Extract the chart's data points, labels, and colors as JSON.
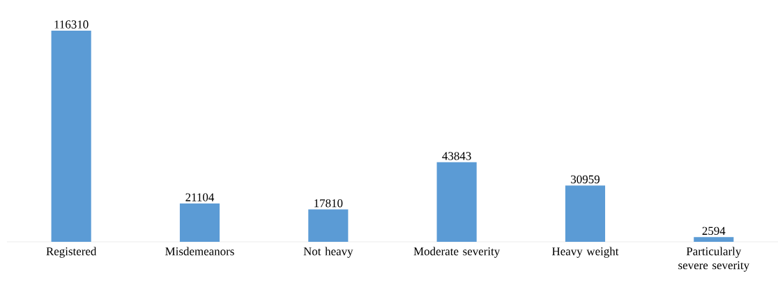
{
  "chart_data": {
    "type": "bar",
    "categories": [
      "Registered",
      "Misdemeanors",
      "Not heavy",
      "Moderate severity",
      "Heavy weight",
      "Particularly severe severity"
    ],
    "values": [
      116310,
      21104,
      17810,
      43843,
      30959,
      2594
    ],
    "color": "#5b9bd5",
    "data_labels": true
  }
}
